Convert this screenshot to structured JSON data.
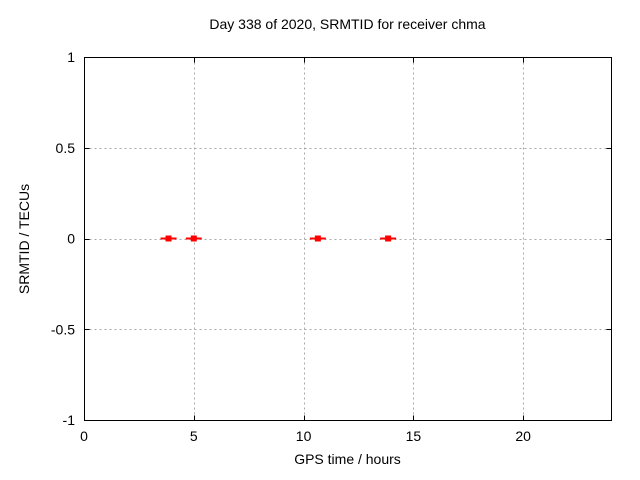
{
  "chart_data": {
    "type": "scatter",
    "title": "Day 338 of 2020, SRMTID for receiver chma",
    "xlabel": "GPS time / hours",
    "ylabel": "SRMTID / TECUs",
    "xlim": [
      0,
      24
    ],
    "ylim": [
      -1,
      1
    ],
    "xticks": [
      0,
      5,
      10,
      15,
      20
    ],
    "yticks": [
      -1,
      -0.5,
      0,
      0.5,
      1
    ],
    "grid": true,
    "grid_style": "dotted",
    "grid_color": "#a8a8a8",
    "axis_color": "#000000",
    "background_color": "#ffffff",
    "legend": "none",
    "series": [
      {
        "name": "SRMTID",
        "marker": "filled-square-with-horizontal-errorbar",
        "color": "#ff0000",
        "points": [
          {
            "x": 3.85,
            "y": 0
          },
          {
            "x": 5.0,
            "y": 0
          },
          {
            "x": 10.65,
            "y": 0
          },
          {
            "x": 13.85,
            "y": 0
          }
        ]
      }
    ]
  }
}
